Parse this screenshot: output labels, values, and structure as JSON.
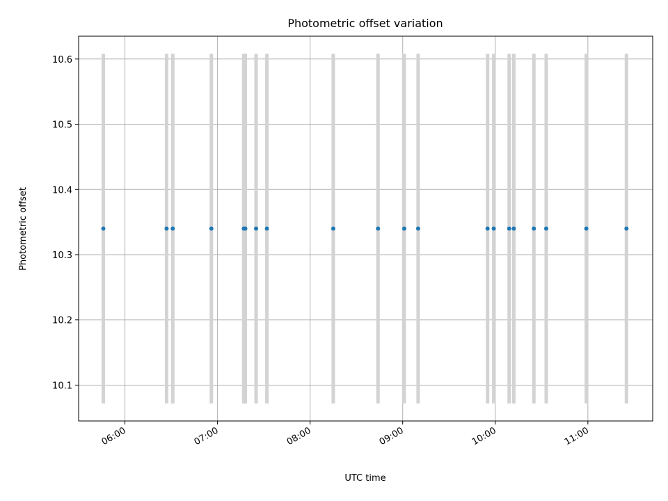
{
  "chart_data": {
    "type": "scatter",
    "title": "Photometric offset variation",
    "xlabel": "UTC time",
    "ylabel": "Photometric offset",
    "x_ticks": [
      "06:00",
      "07:00",
      "08:00",
      "09:00",
      "10:00",
      "11:00"
    ],
    "y_ticks": [
      "10.1",
      "10.2",
      "10.3",
      "10.4",
      "10.5",
      "10.6"
    ],
    "xlim": [
      "05:30",
      "11:42"
    ],
    "ylim": [
      10.045,
      10.635
    ],
    "grid": true,
    "x": [
      "05:46",
      "06:27",
      "06:31",
      "06:56",
      "07:17",
      "07:18",
      "07:25",
      "07:32",
      "08:15",
      "08:44",
      "09:01",
      "09:10",
      "09:55",
      "09:59",
      "10:09",
      "10:12",
      "10:25",
      "10:33",
      "10:59",
      "11:25"
    ],
    "y": [
      10.34,
      10.34,
      10.34,
      10.34,
      10.34,
      10.34,
      10.34,
      10.34,
      10.34,
      10.34,
      10.34,
      10.34,
      10.34,
      10.34,
      10.34,
      10.34,
      10.34,
      10.34,
      10.34,
      10.34
    ],
    "error_range": [
      10.072,
      10.608
    ],
    "colors": {
      "points": "#1f77b4",
      "error_bars": "#d3d3d3",
      "grid": "#b0b0b0"
    }
  }
}
